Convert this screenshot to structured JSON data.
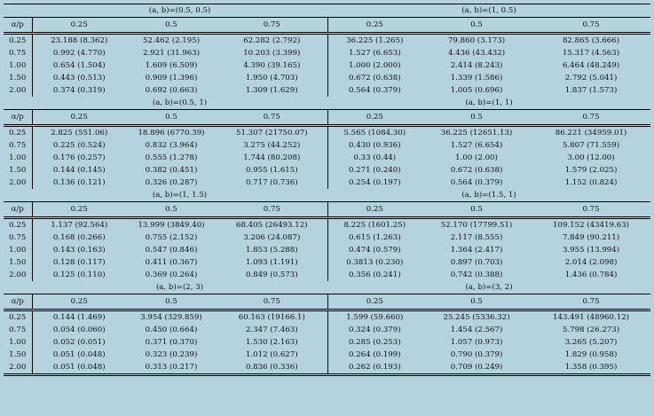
{
  "row_header_label": "α/p",
  "columns": [
    "0.25",
    "0.5",
    "0.75"
  ],
  "rows": [
    "0.25",
    "0.75",
    "1.00",
    "1.50",
    "2.00"
  ],
  "blocks": [
    {
      "left": {
        "title": "(a, b)=(0.5, 0.5)",
        "cells": [
          [
            "23.188 (8.362)",
            "52.462 (2.195)",
            "62.282 (2.792)"
          ],
          [
            "0.992 (4.770)",
            "2.921 (31.963)",
            "10.203 (3.399)"
          ],
          [
            "0.654 (1.504)",
            "1.609 (6.509)",
            "4.390 (39.165)"
          ],
          [
            "0.443 (0.513)",
            "0.909 (1.396)",
            "1.950 (4.703)"
          ],
          [
            "0.374 (0.319)",
            "0.692 (0.663)",
            "1.309 (1.629)"
          ]
        ]
      },
      "right": {
        "title": "(a, b)=(1, 0.5)",
        "cells": [
          [
            "36.225 (1.265)",
            "79.860 (3.173)",
            "82.865 (3.666)"
          ],
          [
            "1.527 (6.653)",
            "4.436 (43.432)",
            "15.317 (4.563)"
          ],
          [
            "1.000 (2.000)",
            "2.414 (8.243)",
            "6.464 (48.249)"
          ],
          [
            "0.672 (0.638)",
            "1.339 (1.586)",
            "2.792 (5.041)"
          ],
          [
            "0.564 (0.379)",
            "1.005 (0.696)",
            "1.837 (1.573)"
          ]
        ]
      }
    },
    {
      "left": {
        "title": "(a, b)=(0.5, 1)",
        "cells": [
          [
            "2.825 (551.06)",
            "18.896 (6770.39)",
            "51.307 (21750.07)"
          ],
          [
            "0.225 (0.524)",
            "0.832 (3.964)",
            "3.275 (44.252)"
          ],
          [
            "0.176 (0.257)",
            "0.555 (1.278)",
            "1.744 (80.208)"
          ],
          [
            "0.144 (0.145)",
            "0.382 (0.451)",
            "0.955 (1.615)"
          ],
          [
            "0.136 (0.121)",
            "0.326 (0.287)",
            "0.717 (0.736)"
          ]
        ]
      },
      "right": {
        "title": "(a, b)=(1, 1)",
        "cells": [
          [
            "5.565 (1084.30)",
            "36.225 (12651.13)",
            "86.221 (34959.01)"
          ],
          [
            "0.430 (0.936)",
            "1.527 (6.654)",
            "5.807 (71.559)"
          ],
          [
            "0.33 (0.44)",
            "1.00 (2.00)",
            "3.00 (12.00)"
          ],
          [
            "0.271 (0.240)",
            "0.672 (0.638)",
            "1.579 (2.025)"
          ],
          [
            "0.254 (0.197)",
            "0.564 (0.379)",
            "1.152 (0.824)"
          ]
        ]
      }
    },
    {
      "left": {
        "title": "(a, b)=(1, 1.5)",
        "cells": [
          [
            "1.137 (92.564)",
            "13.999 (3849.40)",
            "68.405 (26493.12)"
          ],
          [
            "0.168 (0.266)",
            "0.755 (2.152)",
            "3.206 (24.087)"
          ],
          [
            "0.143 (0.163)",
            "0.547 (0.846)",
            "1.853 (5.288)"
          ],
          [
            "0.128 (0.117)",
            "0.411 (0.367)",
            "1.093 (1.191)"
          ],
          [
            "0.125 (0.110)",
            "0.369 (0.264)",
            "0.849 (0.573)"
          ]
        ]
      },
      "right": {
        "title": "(a, b)=(1.5, 1)",
        "cells": [
          [
            "8.225 (1601.25)",
            "52.170 (17799.51)",
            "109.152 (43419.63)"
          ],
          [
            "0.615 (1.263)",
            "2.117 (8.555)",
            "7.849 (90.211)"
          ],
          [
            "0.474 (0.579)",
            "1.364 (2.417)",
            "3.955 (13.994)"
          ],
          [
            "0.3813 (0.230)",
            "0.897 (0.703)",
            "2.014 (2.098)"
          ],
          [
            "0.356 (0.241)",
            "0.742 (0.388)",
            "1.436 (0.784)"
          ]
        ]
      }
    },
    {
      "left": {
        "title": "(a, b)=(2, 3)",
        "cells": [
          [
            "0.144 (1.469)",
            "3.954 (329.859)",
            "60.163 (19166.1)"
          ],
          [
            "0.054 (0.060)",
            "0.450 (0.664)",
            "2.347 (7.463)"
          ],
          [
            "0.052 (0.051)",
            "0.371 (0.370)",
            "1.530 (2.163)"
          ],
          [
            "0.051 (0.048)",
            "0.323 (0.239)",
            "1.012 (0.627)"
          ],
          [
            "0.051 (0.048)",
            "0.313 (0.217)",
            "0.836 (0.336)"
          ]
        ]
      },
      "right": {
        "title": "(a, b)=(3, 2)",
        "cells": [
          [
            "1.599 (59.660)",
            "25.245 (5336.32)",
            "143.491 (48960.12)"
          ],
          [
            "0.324 (0.379)",
            "1.454 (2.567)",
            "5.798 (26.273)"
          ],
          [
            "0.285 (0.253)",
            "1.057 (0.973)",
            "3.265 (5.207)"
          ],
          [
            "0.264 (0.199)",
            "0.790 (0.379)",
            "1.829 (0.958)"
          ],
          [
            "0.262 (0.193)",
            "0.709 (0.249)",
            "1.358 (0.395)"
          ]
        ]
      }
    }
  ]
}
